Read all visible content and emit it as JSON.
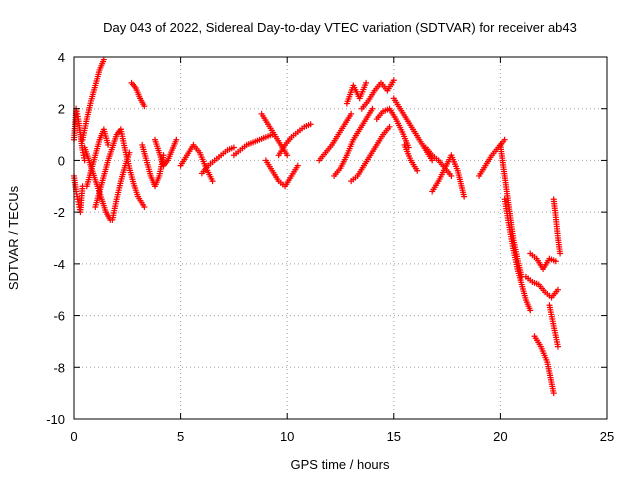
{
  "chart_data": {
    "type": "scatter",
    "title": "Day 043 of 2022, Sidereal Day-to-day VTEC variation (SDTVAR) for receiver ab43",
    "xlabel": "GPS time / hours",
    "ylabel": "SDTVAR / TECUs",
    "xlim": [
      0,
      25
    ],
    "ylim": [
      -10,
      4
    ],
    "x_ticks": [
      0,
      5,
      10,
      15,
      20,
      25
    ],
    "y_ticks": [
      -10,
      -8,
      -6,
      -4,
      -2,
      0,
      2,
      4
    ],
    "x_tick_labels": [
      "0",
      "5",
      "10",
      "15",
      "20",
      "25"
    ],
    "y_tick_labels": [
      "-10",
      "-8",
      "-6",
      "-4",
      "-2",
      "0",
      "2",
      "4"
    ],
    "grid": true,
    "marker": "+",
    "series": [
      {
        "name": "SDTVAR",
        "color": "#ff0000",
        "tracks": [
          {
            "x": [
              0.0,
              0.1,
              0.2,
              0.3,
              0.4,
              0.5
            ],
            "y": [
              0.8,
              2.0,
              1.6,
              1.0,
              0.4,
              0.0
            ]
          },
          {
            "x": [
              0.0,
              0.1,
              0.2,
              0.3,
              0.4
            ],
            "y": [
              -0.6,
              -1.2,
              -1.6,
              -2.0,
              -1.0
            ]
          },
          {
            "x": [
              0.4,
              0.6,
              0.8,
              1.0,
              1.2,
              1.4
            ],
            "y": [
              0.8,
              1.6,
              2.3,
              2.9,
              3.5,
              3.9
            ]
          },
          {
            "x": [
              0.5,
              0.7,
              0.9,
              1.1,
              1.3,
              1.5,
              1.7
            ],
            "y": [
              0.5,
              0.0,
              -0.5,
              -1.0,
              -1.5,
              -2.0,
              -2.3
            ]
          },
          {
            "x": [
              0.6,
              0.8,
              1.0,
              1.2,
              1.4,
              1.6
            ],
            "y": [
              -1.0,
              -0.4,
              0.2,
              0.8,
              1.2,
              0.6
            ]
          },
          {
            "x": [
              1.0,
              1.2,
              1.4,
              1.6,
              1.8,
              2.0,
              2.2
            ],
            "y": [
              -1.8,
              -1.2,
              -0.6,
              0.0,
              0.5,
              1.0,
              1.2
            ]
          },
          {
            "x": [
              1.8,
              2.0,
              2.2,
              2.4,
              2.6
            ],
            "y": [
              -2.3,
              -1.5,
              -0.8,
              -0.2,
              0.3
            ]
          },
          {
            "x": [
              2.2,
              2.4,
              2.6,
              2.8,
              3.0,
              3.3
            ],
            "y": [
              1.2,
              0.4,
              -0.3,
              -0.9,
              -1.4,
              -1.8
            ]
          },
          {
            "x": [
              2.7,
              2.9,
              3.1,
              3.3
            ],
            "y": [
              3.0,
              2.8,
              2.4,
              2.1
            ]
          },
          {
            "x": [
              3.2,
              3.4,
              3.6,
              3.8,
              4.0,
              4.2
            ],
            "y": [
              0.6,
              0.0,
              -0.6,
              -1.0,
              -0.6,
              0.2
            ]
          },
          {
            "x": [
              3.8,
              4.0,
              4.2,
              4.4,
              4.6,
              4.8
            ],
            "y": [
              0.8,
              0.3,
              -0.2,
              0.0,
              0.4,
              0.8
            ]
          },
          {
            "x": [
              5.0,
              5.3,
              5.6,
              5.9,
              6.2,
              6.5
            ],
            "y": [
              -0.2,
              0.2,
              0.6,
              0.3,
              -0.3,
              -0.8
            ]
          },
          {
            "x": [
              6.0,
              6.3,
              6.6,
              6.9,
              7.2,
              7.5
            ],
            "y": [
              -0.5,
              -0.2,
              0.0,
              0.2,
              0.4,
              0.5
            ]
          },
          {
            "x": [
              7.5,
              7.8,
              8.1,
              8.4,
              8.7,
              9.0,
              9.3
            ],
            "y": [
              0.2,
              0.4,
              0.6,
              0.7,
              0.8,
              0.9,
              1.0
            ]
          },
          {
            "x": [
              8.8,
              9.1,
              9.4,
              9.7,
              10.0
            ],
            "y": [
              1.8,
              1.4,
              1.0,
              0.6,
              0.2
            ]
          },
          {
            "x": [
              9.0,
              9.3,
              9.6,
              9.9,
              10.2,
              10.5
            ],
            "y": [
              0.0,
              -0.4,
              -0.8,
              -1.0,
              -0.6,
              -0.2
            ]
          },
          {
            "x": [
              9.6,
              9.9,
              10.2,
              10.5,
              10.8,
              11.1
            ],
            "y": [
              0.2,
              0.6,
              0.9,
              1.1,
              1.3,
              1.4
            ]
          },
          {
            "x": [
              11.5,
              11.8,
              12.1,
              12.4,
              12.7,
              13.0
            ],
            "y": [
              0.0,
              0.3,
              0.6,
              1.0,
              1.4,
              1.8
            ]
          },
          {
            "x": [
              12.2,
              12.5,
              12.8,
              13.1,
              13.4,
              13.7,
              14.0
            ],
            "y": [
              -0.6,
              -0.3,
              0.2,
              0.8,
              1.2,
              1.6,
              2.0
            ]
          },
          {
            "x": [
              12.8,
              13.1,
              13.4,
              13.7
            ],
            "y": [
              2.2,
              2.9,
              2.4,
              3.0
            ]
          },
          {
            "x": [
              13.0,
              13.3,
              13.6,
              13.9,
              14.2,
              14.5,
              14.8
            ],
            "y": [
              -0.8,
              -0.6,
              -0.2,
              0.2,
              0.6,
              1.0,
              1.3
            ]
          },
          {
            "x": [
              13.5,
              13.8,
              14.1,
              14.4,
              14.7,
              15.0
            ],
            "y": [
              2.0,
              2.3,
              2.7,
              3.0,
              2.7,
              3.1
            ]
          },
          {
            "x": [
              14.2,
              14.5,
              14.8,
              15.1,
              15.4,
              15.7
            ],
            "y": [
              1.6,
              1.9,
              2.0,
              1.6,
              1.1,
              0.5
            ]
          },
          {
            "x": [
              15.0,
              15.3,
              15.6,
              15.9,
              16.2,
              16.5,
              16.8
            ],
            "y": [
              2.4,
              2.0,
              1.6,
              1.2,
              0.8,
              0.4,
              0.0
            ]
          },
          {
            "x": [
              15.5,
              15.8,
              16.1
            ],
            "y": [
              0.6,
              0.0,
              -0.4
            ]
          },
          {
            "x": [
              16.5,
              16.8,
              17.1,
              17.4,
              17.7
            ],
            "y": [
              0.5,
              0.2,
              0.0,
              -0.3,
              -0.6
            ]
          },
          {
            "x": [
              16.8,
              17.1,
              17.4,
              17.7,
              18.0,
              18.3
            ],
            "y": [
              -1.2,
              -0.8,
              -0.3,
              0.2,
              -0.4,
              -1.4
            ]
          },
          {
            "x": [
              19.0,
              19.3,
              19.6,
              19.9,
              20.2
            ],
            "y": [
              -0.6,
              -0.2,
              0.2,
              0.5,
              0.8
            ]
          },
          {
            "x": [
              20.0,
              20.2,
              20.4,
              20.6,
              20.8,
              21.0
            ],
            "y": [
              0.6,
              -0.6,
              -1.8,
              -3.0,
              -3.8,
              -4.5
            ]
          },
          {
            "x": [
              20.2,
              20.4,
              20.6,
              20.8,
              21.0,
              21.2,
              21.4
            ],
            "y": [
              -1.5,
              -2.5,
              -3.4,
              -4.2,
              -4.8,
              -5.4,
              -5.8
            ]
          },
          {
            "x": [
              21.4,
              21.7,
              22.0,
              22.3,
              22.6
            ],
            "y": [
              -3.6,
              -3.8,
              -4.2,
              -3.8,
              -3.9
            ]
          },
          {
            "x": [
              21.2,
              21.5,
              21.8,
              22.1,
              22.4,
              22.7
            ],
            "y": [
              -4.5,
              -4.7,
              -4.8,
              -5.1,
              -5.3,
              -5.0
            ]
          },
          {
            "x": [
              22.5,
              22.6,
              22.7,
              22.8
            ],
            "y": [
              -1.5,
              -2.2,
              -3.0,
              -3.6
            ]
          },
          {
            "x": [
              21.6,
              21.9,
              22.2,
              22.5
            ],
            "y": [
              -6.8,
              -7.2,
              -7.8,
              -9.0
            ]
          },
          {
            "x": [
              22.3,
              22.5,
              22.7
            ],
            "y": [
              -5.6,
              -6.4,
              -7.2
            ]
          }
        ]
      }
    ]
  }
}
